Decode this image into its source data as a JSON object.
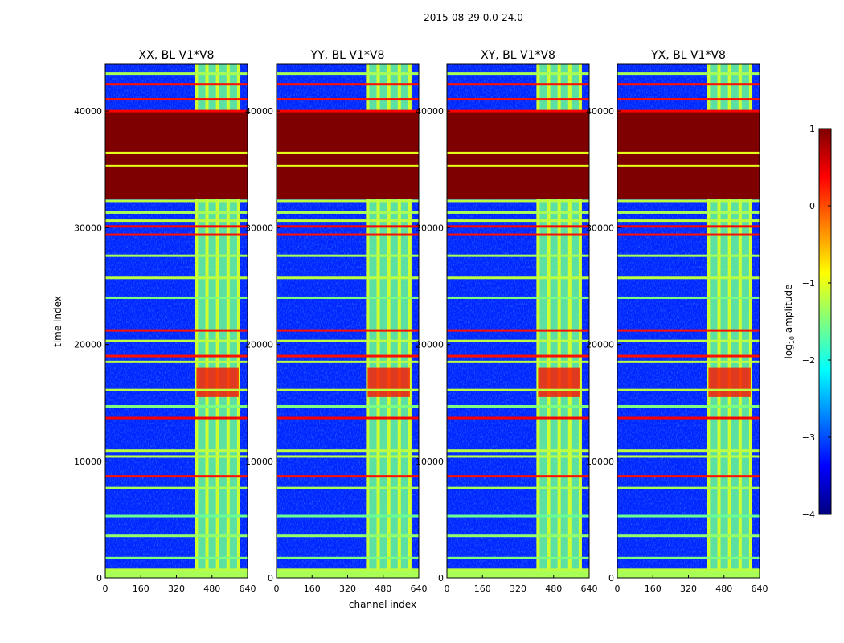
{
  "figure": {
    "suptitle": "2015-08-29 0.0-24.0",
    "xlabel": "channel index",
    "ylabel": "time index"
  },
  "colorbar": {
    "label_prefix": "log",
    "label_sub": "10",
    "label_suffix": " amplitude",
    "range": [
      -4,
      1
    ],
    "ticks": [
      1,
      0,
      -1,
      -2,
      -3,
      -4
    ],
    "tick_labels": [
      "1",
      "0",
      "−1",
      "−2",
      "−3",
      "−4"
    ],
    "colormap": "jet",
    "stops": [
      "#00007f",
      "#0000ff",
      "#007fff",
      "#00ffff",
      "#7fff7f",
      "#ffff00",
      "#ff7f00",
      "#ff0000",
      "#7f0000"
    ]
  },
  "chart_data": {
    "type": "heatmap",
    "xlim": [
      0,
      640
    ],
    "ylim": [
      0,
      44000
    ],
    "xticks": [
      0,
      160,
      320,
      480,
      640
    ],
    "xtick_labels": [
      "0",
      "160",
      "320",
      "480",
      "640"
    ],
    "yticks": [
      0,
      10000,
      20000,
      30000,
      40000
    ],
    "ytick_labels": [
      "0",
      "10000",
      "20000",
      "30000",
      "40000"
    ],
    "panels": [
      {
        "title": "XX, BL V1*V8"
      },
      {
        "title": "YY, BL V1*V8"
      },
      {
        "title": "XY, BL V1*V8"
      },
      {
        "title": "YX, BL V1*V8"
      }
    ],
    "saturated_band": {
      "time_range": [
        32500,
        40000
      ],
      "value": 1
    },
    "active_channels": [
      410,
      600
    ],
    "hot_region": {
      "time_range": [
        15500,
        18000
      ],
      "value": 0.3
    },
    "horizontal_lines": [
      {
        "t": 500,
        "value": 0.5
      },
      {
        "t": 700,
        "value": -1.2
      },
      {
        "t": 1700,
        "value": -1.5
      },
      {
        "t": 3600,
        "value": -1.4
      },
      {
        "t": 5300,
        "value": -1.6
      },
      {
        "t": 7700,
        "value": -1.3
      },
      {
        "t": 8700,
        "value": 0.3
      },
      {
        "t": 10400,
        "value": -1.2
      },
      {
        "t": 10900,
        "value": -1.2
      },
      {
        "t": 13700,
        "value": 0.4
      },
      {
        "t": 14700,
        "value": -1.5
      },
      {
        "t": 16100,
        "value": -1.2
      },
      {
        "t": 18500,
        "value": -1.2
      },
      {
        "t": 19000,
        "value": 0.3
      },
      {
        "t": 20300,
        "value": -1.2
      },
      {
        "t": 21200,
        "value": 0.3
      },
      {
        "t": 24000,
        "value": -1.5
      },
      {
        "t": 25700,
        "value": -1.2
      },
      {
        "t": 27600,
        "value": -1.3
      },
      {
        "t": 29400,
        "value": 0.3
      },
      {
        "t": 30100,
        "value": 0.4
      },
      {
        "t": 30600,
        "value": -1.2
      },
      {
        "t": 31300,
        "value": -1.3
      },
      {
        "t": 32300,
        "value": -1.2
      },
      {
        "t": 36400,
        "value": -1.0
      },
      {
        "t": 35300,
        "value": -1.0
      },
      {
        "t": 40000,
        "value": 0.4
      },
      {
        "t": 41000,
        "value": 0.3
      },
      {
        "t": 42300,
        "value": 0.3
      },
      {
        "t": 43200,
        "value": -1.3
      }
    ]
  }
}
